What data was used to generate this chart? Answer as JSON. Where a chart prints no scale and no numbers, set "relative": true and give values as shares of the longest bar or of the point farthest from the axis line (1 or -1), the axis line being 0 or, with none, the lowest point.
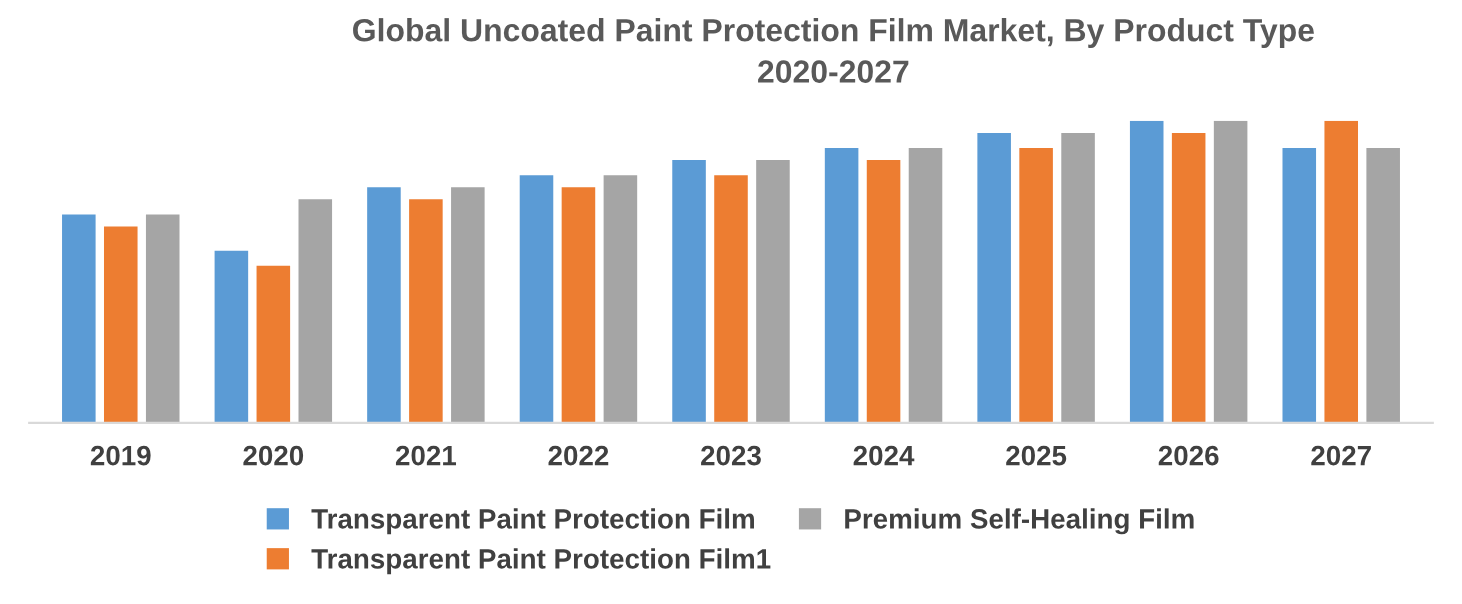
{
  "chart_data": {
    "type": "bar",
    "title": "Global Uncoated Paint Protection Film Market, By Product Type\n2020-2027",
    "relative": true,
    "categories": [
      "2019",
      "2020",
      "2021",
      "2022",
      "2023",
      "2024",
      "2025",
      "2026",
      "2027"
    ],
    "series": [
      {
        "name": "Transparent Paint Protection Film",
        "color": "#5b9bd5",
        "values": [
          0.69,
          0.57,
          0.78,
          0.82,
          0.87,
          0.91,
          0.96,
          1,
          0.91
        ]
      },
      {
        "name": "Transparent Paint Protection Film1",
        "color": "#ed7d31",
        "values": [
          0.65,
          0.52,
          0.74,
          0.78,
          0.82,
          0.87,
          0.91,
          0.96,
          1
        ]
      },
      {
        "name": "Premium Self-Healing Film",
        "color": "#a5a5a5",
        "values": [
          0.69,
          0.74,
          0.78,
          0.82,
          0.87,
          0.91,
          0.96,
          1,
          0.91
        ]
      }
    ],
    "legend": "bottom",
    "grid": false
  }
}
